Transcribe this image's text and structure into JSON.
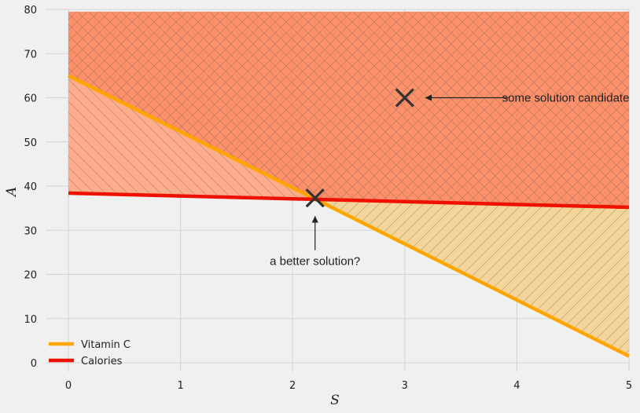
{
  "chart_data": {
    "type": "line",
    "title": "",
    "xlabel": "S",
    "ylabel": "A",
    "xlim": [
      -0.2,
      5
    ],
    "ylim": [
      -2,
      80
    ],
    "xticks": [
      0,
      1,
      2,
      3,
      4,
      5
    ],
    "yticks": [
      0,
      10,
      20,
      30,
      40,
      50,
      60,
      70,
      80
    ],
    "grid": true,
    "legend_position": "bottom-left",
    "series": [
      {
        "name": "Vitamin C",
        "color": "#ffa500",
        "x": [
          0,
          5
        ],
        "y": [
          65,
          1.5
        ]
      },
      {
        "name": "Calories",
        "color": "#ee1100",
        "x": [
          0,
          5
        ],
        "y": [
          38.4,
          35.2
        ]
      }
    ],
    "regions": [
      {
        "description": "above both lines",
        "color": "#ff7f50",
        "hatch": "cross"
      },
      {
        "description": "above Vitamin C only",
        "color": "#ffa07a",
        "hatch": "backslash"
      },
      {
        "description": "above Calories only",
        "color": "#f5d08a",
        "hatch": "slash"
      }
    ],
    "markers": [
      {
        "x": 3,
        "y": 60,
        "label": "some solution candidate",
        "label_x": 4.45,
        "label_y": 60
      },
      {
        "x": 2.2,
        "y": 37.3,
        "label": "a better solution?",
        "label_x": 2.2,
        "label_y": 23
      }
    ]
  }
}
